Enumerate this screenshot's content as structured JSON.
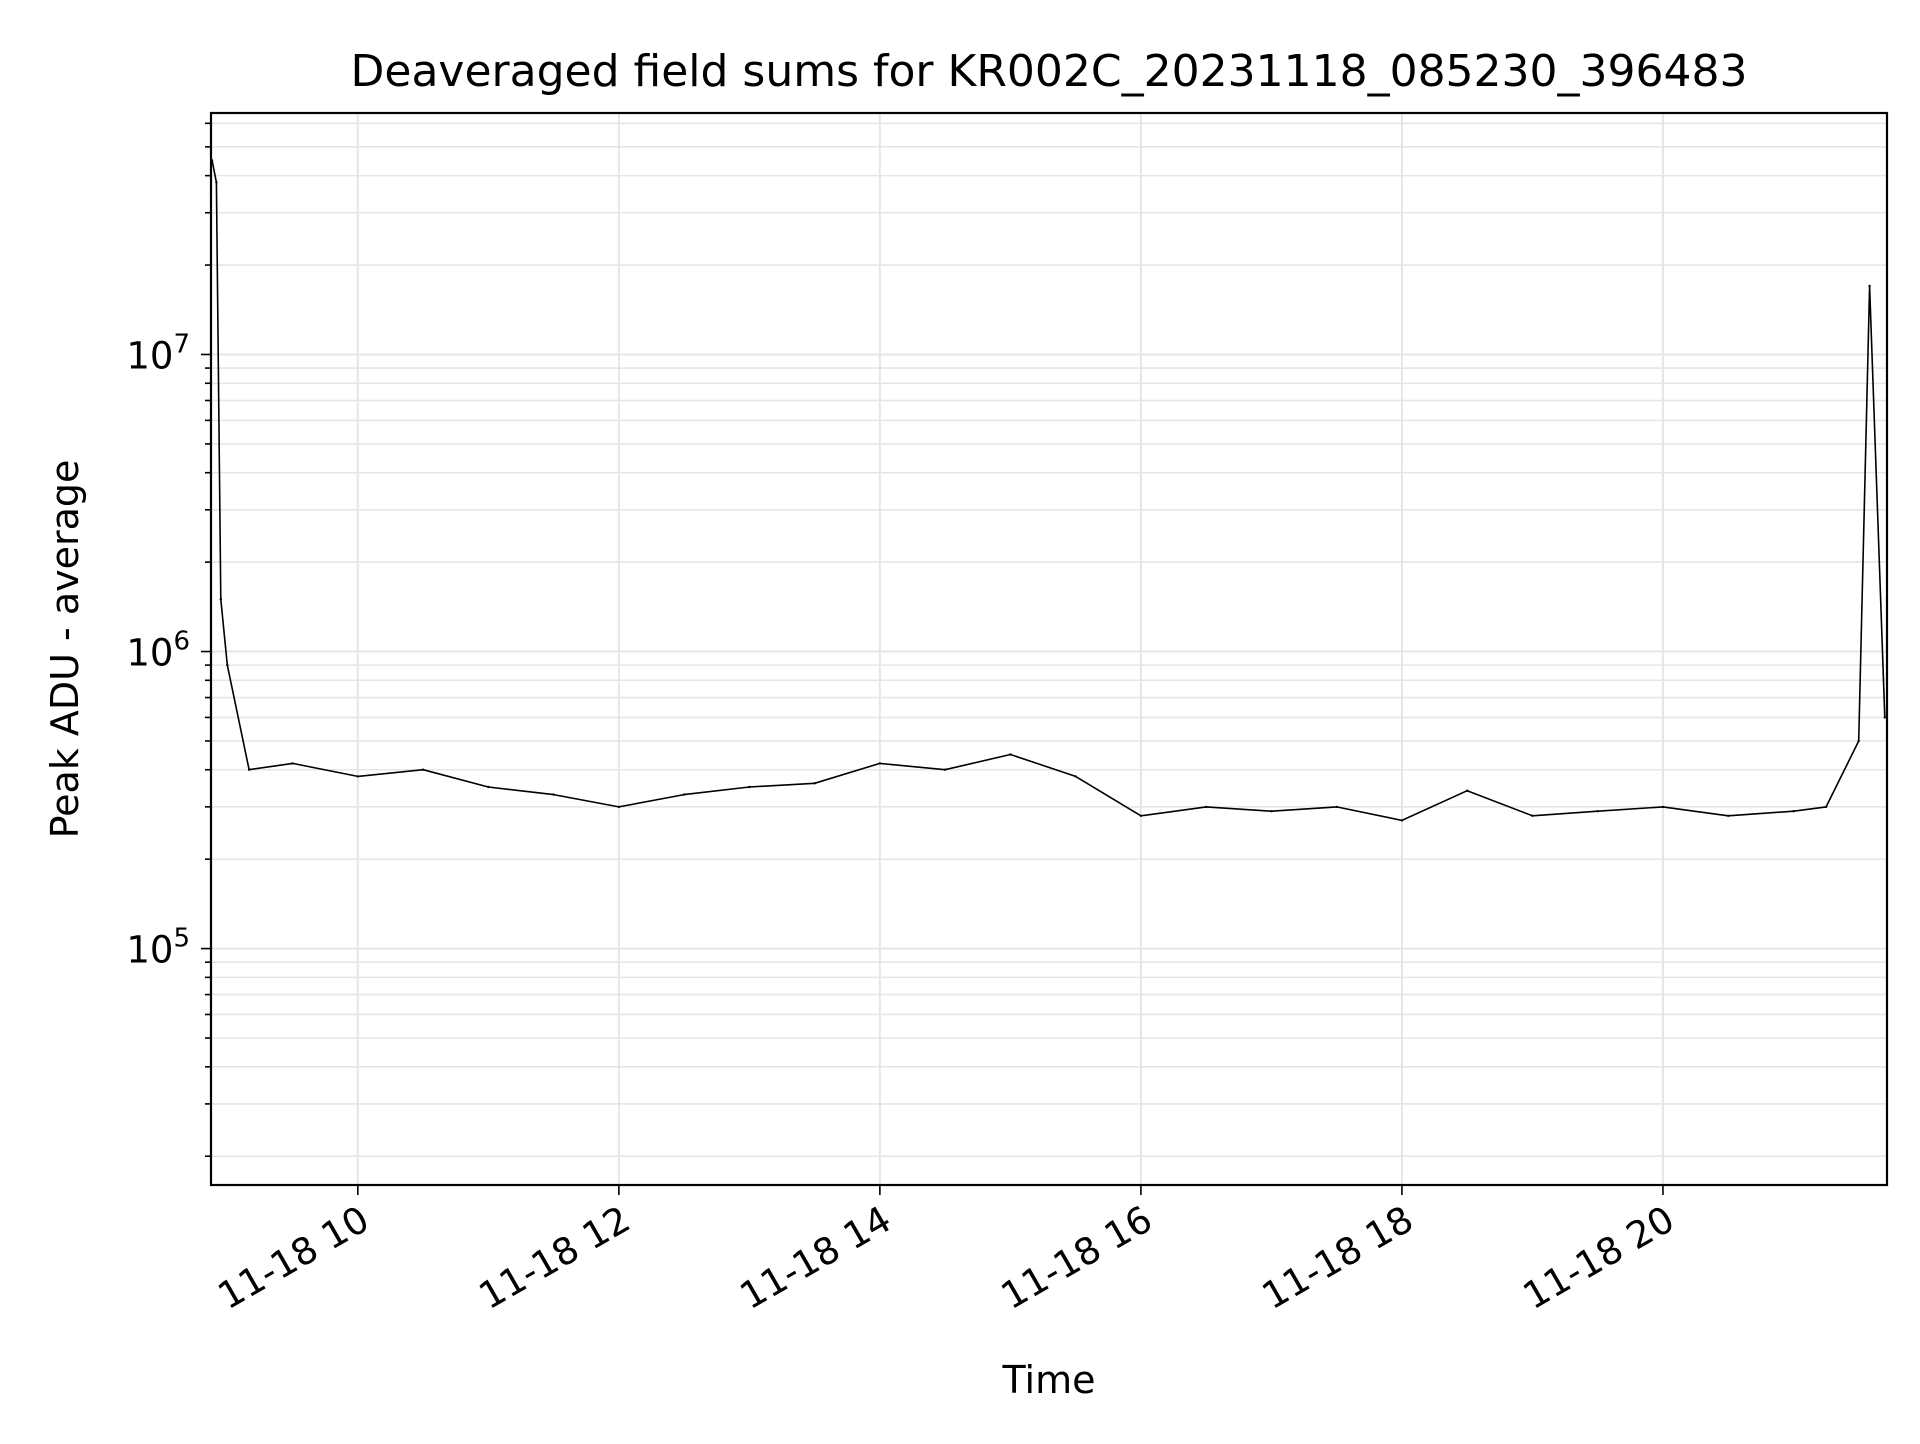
{
  "chart_data": {
    "type": "line",
    "title": "Deaveraged field sums for KR002C_20231118_085230_396483",
    "xlabel": "Time",
    "ylabel": "Peak ADU - average",
    "yscale": "log",
    "grid": true,
    "legend": "none",
    "line_color": "#000000",
    "grid_color": "#e6e6e6",
    "xlim": [
      "2023-11-18T08:52:30",
      "2023-11-18T21:43:00"
    ],
    "ylim": [
      16000,
      65000000
    ],
    "x_ticks": [
      {
        "value": "2023-11-18T10:00",
        "label": "11-18 10"
      },
      {
        "value": "2023-11-18T12:00",
        "label": "11-18 12"
      },
      {
        "value": "2023-11-18T14:00",
        "label": "11-18 14"
      },
      {
        "value": "2023-11-18T16:00",
        "label": "11-18 16"
      },
      {
        "value": "2023-11-18T18:00",
        "label": "11-18 18"
      },
      {
        "value": "2023-11-18T20:00",
        "label": "11-18 20"
      }
    ],
    "y_ticks": [
      {
        "value": 100000,
        "base": "10",
        "exp": "5"
      },
      {
        "value": 1000000,
        "base": "10",
        "exp": "6"
      },
      {
        "value": 10000000,
        "base": "10",
        "exp": "7"
      }
    ],
    "series": [
      {
        "x": [
          "2023-11-18T08:53",
          "2023-11-18T08:55",
          "2023-11-18T08:57",
          "2023-11-18T09:00",
          "2023-11-18T09:10",
          "2023-11-18T09:30",
          "2023-11-18T10:00",
          "2023-11-18T10:30",
          "2023-11-18T11:00",
          "2023-11-18T11:30",
          "2023-11-18T12:00",
          "2023-11-18T12:30",
          "2023-11-18T13:00",
          "2023-11-18T13:30",
          "2023-11-18T14:00",
          "2023-11-18T14:30",
          "2023-11-18T15:00",
          "2023-11-18T15:30",
          "2023-11-18T16:00",
          "2023-11-18T16:30",
          "2023-11-18T17:00",
          "2023-11-18T17:30",
          "2023-11-18T18:00",
          "2023-11-18T18:30",
          "2023-11-18T19:00",
          "2023-11-18T19:30",
          "2023-11-18T20:00",
          "2023-11-18T20:30",
          "2023-11-18T21:00",
          "2023-11-18T21:15",
          "2023-11-18T21:30",
          "2023-11-18T21:35",
          "2023-11-18T21:42"
        ],
        "y": [
          45000000,
          38000000,
          1500000,
          900000,
          400000,
          420000,
          380000,
          400000,
          350000,
          330000,
          300000,
          330000,
          350000,
          360000,
          420000,
          400000,
          450000,
          380000,
          280000,
          300000,
          290000,
          300000,
          270000,
          340000,
          280000,
          290000,
          300000,
          280000,
          290000,
          300000,
          500000,
          17000000,
          600000
        ]
      }
    ]
  }
}
